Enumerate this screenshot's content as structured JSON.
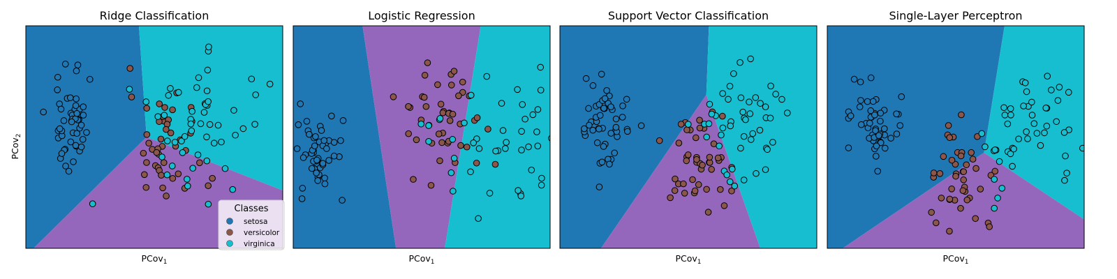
{
  "colors": {
    "setosa": "#1f77b4",
    "versicolor": "#8c564b",
    "virginica": "#17becf",
    "region_setosa": "#1f77b4",
    "region_versicolor": "#9467bd",
    "region_virginica": "#17becf"
  },
  "legend": {
    "title": "Classes",
    "items": [
      {
        "key": "setosa",
        "label": "setosa"
      },
      {
        "key": "versicolor",
        "label": "versicolor"
      },
      {
        "key": "virginica",
        "label": "virginica"
      }
    ]
  },
  "axis": {
    "xlabel_main": "PCov",
    "xlabel_sub": "1",
    "ylabel_main": "PCov",
    "ylabel_sub": "2"
  },
  "chart_data": [
    {
      "type": "scatter",
      "title": "Ridge Classification",
      "xlim": [
        0,
        10
      ],
      "ylim": [
        0,
        10
      ],
      "regions": {
        "center": [
          4.7,
          5.0
        ],
        "setosa_virginica": [
          4.4,
          10
        ],
        "setosa_versicolor": [
          0.3,
          0
        ],
        "versicolor_virginica": [
          10,
          2.6
        ]
      },
      "misclassified": [
        [
          2.6,
          2.0
        ],
        [
          5.5,
          3.3
        ],
        [
          5.7,
          3.7
        ],
        [
          6.3,
          2.8
        ],
        [
          6.5,
          3.6
        ],
        [
          6.1,
          4.3
        ],
        [
          6.7,
          4.2
        ]
      ],
      "virginica_centroid": [
        7.0,
        5.8
      ],
      "virginica_spread": [
        1.1,
        1.3
      ],
      "versicolor_centroid": [
        5.3,
        4.4
      ],
      "versicolor_spread": [
        0.7,
        1.2
      ]
    },
    {
      "type": "scatter",
      "title": "Logistic Regression",
      "xlim": [
        0,
        10
      ],
      "ylim": [
        0,
        10
      ],
      "regions": {
        "top_left": [
          2.7,
          10
        ],
        "bottom_left": [
          4.0,
          0
        ],
        "top_right": [
          7.3,
          10
        ],
        "bottom_right": [
          5.9,
          0
        ]
      },
      "misclassified": [],
      "virginica_centroid": [
        7.8,
        4.9
      ],
      "virginica_spread": [
        1.3,
        1.6
      ],
      "versicolor_centroid": [
        5.8,
        5.8
      ],
      "versicolor_spread": [
        0.8,
        1.5
      ]
    },
    {
      "type": "scatter",
      "title": "Support Vector Classification",
      "xlim": [
        0,
        10
      ],
      "ylim": [
        0,
        10
      ],
      "regions": {
        "center": [
          5.7,
          6.9
        ],
        "setosa_virginica": [
          5.8,
          10
        ],
        "setosa_versicolor": [
          1.6,
          0
        ],
        "versicolor_virginica": [
          7.8,
          0
        ]
      },
      "misclassified": [
        [
          6.5,
          3.3
        ],
        [
          6.8,
          2.8
        ],
        [
          6.2,
          4.6
        ],
        [
          5.8,
          5.6
        ]
      ],
      "virginica_centroid": [
        7.4,
        5.5
      ],
      "virginica_spread": [
        1.1,
        1.3
      ],
      "versicolor_centroid": [
        5.4,
        3.8
      ],
      "versicolor_spread": [
        0.7,
        1.1
      ]
    },
    {
      "type": "scatter",
      "title": "Single-Layer Perceptron",
      "xlim": [
        0,
        10
      ],
      "ylim": [
        0,
        10
      ],
      "regions": {
        "center": [
          6.1,
          4.3
        ],
        "setosa_virginica": [
          6.9,
          10
        ],
        "setosa_versicolor": [
          0.6,
          0
        ],
        "versicolor_virginica": [
          10,
          1.3
        ]
      },
      "misclassified": [
        [
          6.5,
          3.1
        ],
        [
          6.8,
          2.7
        ],
        [
          6.5,
          1.8
        ],
        [
          6.7,
          3.9
        ]
      ],
      "virginica_centroid": [
        7.9,
        5.4
      ],
      "virginica_spread": [
        1.1,
        1.3
      ],
      "versicolor_centroid": [
        5.3,
        3.3
      ],
      "versicolor_spread": [
        0.8,
        1.3
      ]
    }
  ]
}
